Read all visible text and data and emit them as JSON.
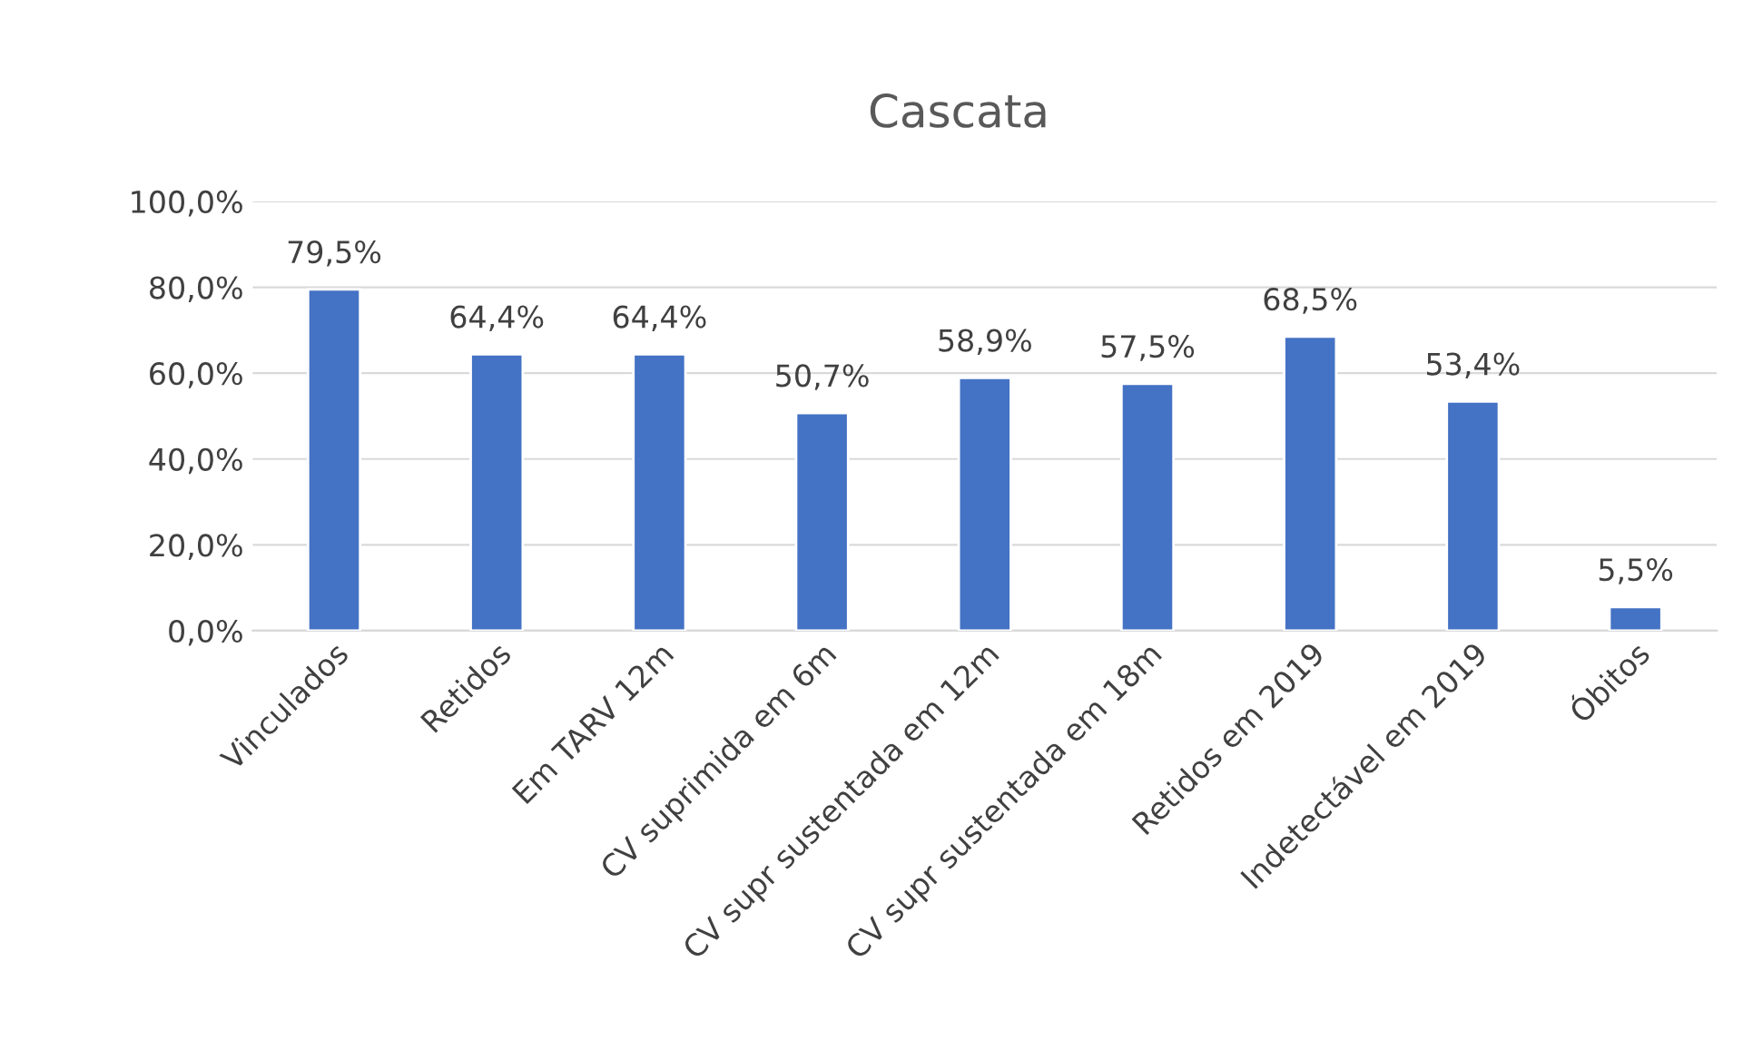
{
  "chart_data": {
    "type": "bar",
    "title": "Cascata",
    "categories": [
      "Vinculados",
      "Retidos",
      "Em TARV 12m",
      "CV suprimida em 6m",
      "CV supr sustentada em 12m",
      "CV supr sustentada em 18m",
      "Retidos em 2019",
      "Indetectável em 2019",
      "Óbitos"
    ],
    "values": [
      79.5,
      64.4,
      64.4,
      50.7,
      58.9,
      57.5,
      68.5,
      53.4,
      5.5
    ],
    "value_labels": [
      "79,5%",
      "64,4%",
      "64,4%",
      "50,7%",
      "58,9%",
      "57,5%",
      "68,5%",
      "53,4%",
      "5,5%"
    ],
    "color": "#4472c4",
    "ylim": [
      0,
      100
    ],
    "yticks": [
      {
        "value": 0,
        "label": "0,0%"
      },
      {
        "value": 20,
        "label": "20,0%"
      },
      {
        "value": 40,
        "label": "40,0%"
      },
      {
        "value": 60,
        "label": "60,0%"
      },
      {
        "value": 80,
        "label": "80,0%"
      },
      {
        "value": 100,
        "label": "100,0%"
      }
    ],
    "grid": "y",
    "legend": false
  }
}
